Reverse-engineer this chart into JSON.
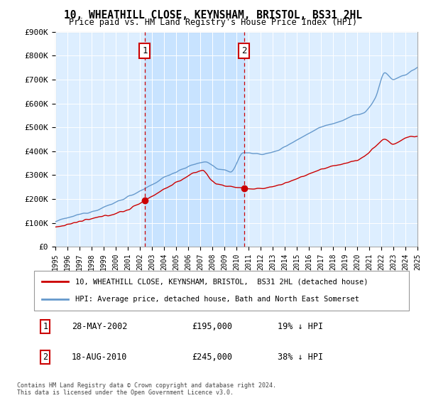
{
  "title": "10, WHEATHILL CLOSE, KEYNSHAM, BRISTOL, BS31 2HL",
  "subtitle": "Price paid vs. HM Land Registry's House Price Index (HPI)",
  "legend_line1": "10, WHEATHILL CLOSE, KEYNSHAM, BRISTOL,  BS31 2HL (detached house)",
  "legend_line2": "HPI: Average price, detached house, Bath and North East Somerset",
  "sale1_label": "1",
  "sale1_date": "28-MAY-2002",
  "sale1_price": "£195,000",
  "sale1_hpi": "19% ↓ HPI",
  "sale1_year": 2002.41,
  "sale1_value": 195000,
  "sale2_label": "2",
  "sale2_date": "18-AUG-2010",
  "sale2_price": "£245,000",
  "sale2_hpi": "38% ↓ HPI",
  "sale2_year": 2010.63,
  "sale2_value": 245000,
  "footnote": "Contains HM Land Registry data © Crown copyright and database right 2024.\nThis data is licensed under the Open Government Licence v3.0.",
  "plot_bg": "#ddeeff",
  "hpi_color": "#6699cc",
  "price_color": "#cc0000",
  "vline_color": "#cc0000",
  "shade_color": "#bbddff",
  "ylim": [
    0,
    900000
  ],
  "xlim": [
    1995,
    2025
  ],
  "yticks": [
    0,
    100000,
    200000,
    300000,
    400000,
    500000,
    600000,
    700000,
    800000,
    900000
  ],
  "ytick_labels": [
    "£0",
    "£100K",
    "£200K",
    "£300K",
    "£400K",
    "£500K",
    "£600K",
    "£700K",
    "£800K",
    "£900K"
  ]
}
